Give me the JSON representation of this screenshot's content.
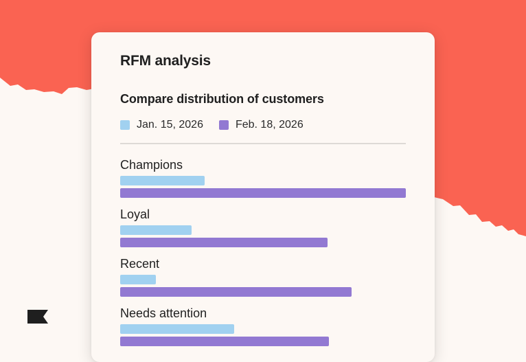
{
  "card": {
    "title": "RFM analysis",
    "subtitle": "Compare distribution of customers"
  },
  "colors": {
    "background": "#FDF8F4",
    "accent_red": "#FA6352",
    "card": "#FDF8F4",
    "series_jan": "#A1D1F0",
    "series_feb": "#9279D2",
    "logo": "#1f1f1f"
  },
  "icons": {
    "brand": "flag-logo-icon"
  },
  "chart_data": {
    "type": "bar",
    "orientation": "horizontal",
    "title": "Compare distribution of customers",
    "categories": [
      "Champions",
      "Loyal",
      "Recent",
      "Needs attention"
    ],
    "series": [
      {
        "name": "Jan. 15, 2026",
        "values": [
          29.5,
          25,
          12.5,
          40
        ]
      },
      {
        "name": "Feb. 18, 2026",
        "values": [
          100,
          72.5,
          81,
          73
        ]
      }
    ],
    "xlim": [
      0,
      100
    ],
    "grid": false,
    "legend": "top-left"
  }
}
